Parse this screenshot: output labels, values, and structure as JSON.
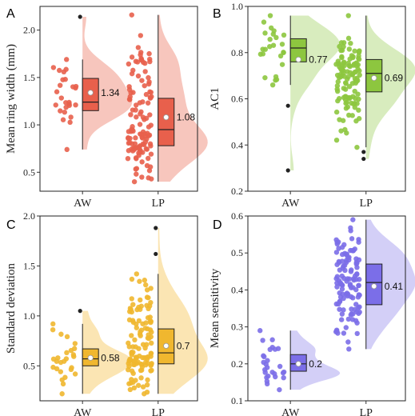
{
  "chart_data": [
    {
      "panel": "A",
      "type": "raincloud",
      "ylabel": "Mean ring width (mm)",
      "ylim": [
        0.3,
        2.25
      ],
      "yticks": [
        0.5,
        1.0,
        1.5,
        2.0
      ],
      "ytick_labels": [
        "0.5",
        "1.0",
        "1.5",
        "2.0"
      ],
      "categories": [
        "AW",
        "LP"
      ],
      "color": "#e8604c",
      "light_color": "#f7c6bd",
      "groups": [
        {
          "name": "AW",
          "q1": 1.15,
          "median": 1.24,
          "q3": 1.49,
          "whisker_low": 0.74,
          "whisker_high": 1.69,
          "mean": 1.34,
          "mean_label": "1.34",
          "outliers": [
            2.14
          ],
          "min": 0.74,
          "max": 2.14,
          "n": 27
        },
        {
          "name": "LP",
          "q1": 0.78,
          "median": 0.95,
          "q3": 1.28,
          "whisker_low": 0.4,
          "whisker_high": 2.16,
          "mean": 1.08,
          "mean_label": "1.08",
          "outliers": [],
          "min": 0.4,
          "max": 2.16,
          "n": 120
        }
      ]
    },
    {
      "panel": "B",
      "type": "raincloud",
      "ylabel": "AC1",
      "ylim": [
        0.2,
        1.0
      ],
      "yticks": [
        0.2,
        0.4,
        0.6,
        0.8,
        1.0
      ],
      "ytick_labels": [
        "0.2",
        "0.4",
        "0.6",
        "0.8",
        "1.0"
      ],
      "categories": [
        "AW",
        "LP"
      ],
      "color": "#8dc63f",
      "light_color": "#d8ecbe",
      "groups": [
        {
          "name": "AW",
          "q1": 0.76,
          "median": 0.82,
          "q3": 0.86,
          "whisker_low": 0.66,
          "whisker_high": 0.96,
          "mean": 0.77,
          "mean_label": "0.77",
          "outliers": [
            0.57,
            0.29
          ],
          "min": 0.29,
          "max": 0.96,
          "n": 27
        },
        {
          "name": "LP",
          "q1": 0.63,
          "median": 0.71,
          "q3": 0.77,
          "whisker_low": 0.39,
          "whisker_high": 0.96,
          "mean": 0.69,
          "mean_label": "0.69",
          "outliers": [
            0.37,
            0.34
          ],
          "min": 0.34,
          "max": 0.96,
          "n": 120
        }
      ]
    },
    {
      "panel": "C",
      "type": "raincloud",
      "ylabel": "Standard deviation",
      "ylim": [
        0.15,
        2.0
      ],
      "yticks": [
        0.5,
        1.0,
        1.5,
        2.0
      ],
      "ytick_labels": [
        "0.5",
        "1.0",
        "1.5",
        "2.0"
      ],
      "categories": [
        "AW",
        "LP"
      ],
      "color": "#f0b72f",
      "light_color": "#fbe5b3",
      "groups": [
        {
          "name": "AW",
          "q1": 0.5,
          "median": 0.57,
          "q3": 0.67,
          "whisker_low": 0.22,
          "whisker_high": 0.92,
          "mean": 0.58,
          "mean_label": "0.58",
          "outliers": [
            1.05
          ],
          "min": 0.22,
          "max": 1.05,
          "n": 27
        },
        {
          "name": "LP",
          "q1": 0.52,
          "median": 0.63,
          "q3": 0.87,
          "whisker_low": 0.22,
          "whisker_high": 1.42,
          "mean": 0.7,
          "mean_label": "0.7",
          "outliers": [
            1.88,
            1.62
          ],
          "min": 0.22,
          "max": 1.88,
          "n": 120
        }
      ]
    },
    {
      "panel": "D",
      "type": "raincloud",
      "ylabel": "Mean sensitivity",
      "ylim": [
        0.1,
        0.6
      ],
      "yticks": [
        0.1,
        0.2,
        0.3,
        0.4,
        0.5,
        0.6
      ],
      "ytick_labels": [
        "0.1",
        "0.2",
        "0.3",
        "0.4",
        "0.5",
        "0.6"
      ],
      "categories": [
        "AW",
        "LP"
      ],
      "color": "#7b6ee8",
      "light_color": "#d3cff7",
      "groups": [
        {
          "name": "AW",
          "q1": 0.18,
          "median": 0.2,
          "q3": 0.225,
          "whisker_low": 0.13,
          "whisker_high": 0.29,
          "mean": 0.2,
          "mean_label": "0.2",
          "outliers": [],
          "min": 0.13,
          "max": 0.29,
          "n": 27
        },
        {
          "name": "LP",
          "q1": 0.36,
          "median": 0.42,
          "q3": 0.47,
          "whisker_low": 0.24,
          "whisker_high": 0.59,
          "mean": 0.41,
          "mean_label": "0.41",
          "outliers": [],
          "min": 0.24,
          "max": 0.59,
          "n": 120
        }
      ]
    }
  ]
}
